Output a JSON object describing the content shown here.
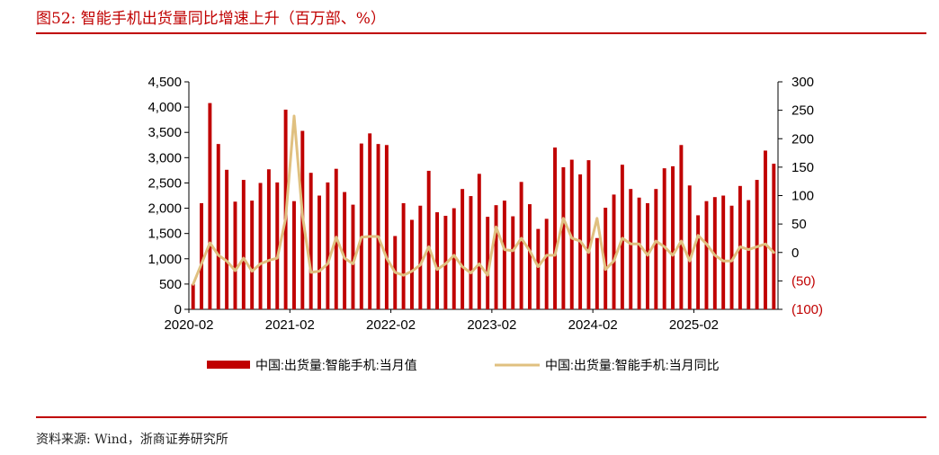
{
  "header": {
    "title": "图52:   智能手机出货量同比增速上升（百万部、%）"
  },
  "footer": {
    "source": "资料来源:  Wind，浙商证券研究所"
  },
  "colors": {
    "accent": "#c00000",
    "bar": "#c00000",
    "line": "#e0c080",
    "neg_tick": "#c00000"
  },
  "chart_data": {
    "type": "bar",
    "x_tick_labels": [
      "2020-02",
      "2021-02",
      "2022-02",
      "2023-02",
      "2024-02",
      "2025-02"
    ],
    "y_left": {
      "ticks": [
        "0",
        "500",
        "1,000",
        "1,500",
        "2,000",
        "2,500",
        "3,000",
        "3,500",
        "4,000",
        "4,500"
      ],
      "ylim": [
        0,
        4500
      ]
    },
    "y_right": {
      "ticks": [
        "(100)",
        "(50)",
        "0",
        "50",
        "100",
        "150",
        "200",
        "250",
        "300"
      ],
      "ylim": [
        -100,
        300
      ]
    },
    "legend": {
      "position": "bottom"
    },
    "series": [
      {
        "name": "中国:出货量:智能手机:当月值",
        "type": "bar",
        "axis": "left",
        "values": [
          500,
          2100,
          4080,
          3270,
          2760,
          2130,
          2560,
          2150,
          2500,
          2770,
          2510,
          3950,
          2140,
          3530,
          2700,
          2250,
          2510,
          2780,
          2320,
          2070,
          3280,
          3480,
          3270,
          3250,
          1450,
          2100,
          1770,
          2050,
          2740,
          1920,
          1850,
          2000,
          2380,
          2240,
          2680,
          1830,
          2060,
          2150,
          1840,
          2520,
          2080,
          1590,
          1790,
          3200,
          2810,
          2960,
          2670,
          2950,
          1410,
          2010,
          2270,
          2860,
          2380,
          2210,
          2100,
          2380,
          2790,
          2830,
          3250,
          2450,
          1860,
          2140,
          2220,
          2250,
          2050,
          2440,
          2160,
          2560,
          3140,
          2880
        ]
      },
      {
        "name": "中国:出货量:智能手机:当月同比",
        "type": "line",
        "axis": "right",
        "values": [
          -56,
          -20,
          17,
          -5,
          -15,
          -32,
          -10,
          -33,
          -20,
          -14,
          -10,
          60,
          240,
          65,
          -35,
          -33,
          -20,
          27,
          -10,
          -20,
          27,
          28,
          28,
          -10,
          -35,
          -40,
          -33,
          -22,
          10,
          -30,
          -20,
          -5,
          -25,
          -36,
          -20,
          -40,
          45,
          5,
          3,
          25,
          3,
          -25,
          -5,
          -5,
          60,
          25,
          20,
          0,
          60,
          -30,
          -15,
          25,
          15,
          15,
          -5,
          20,
          10,
          -5,
          20,
          -15,
          30,
          15,
          -5,
          -15,
          -15,
          10,
          5,
          10,
          15,
          0
        ]
      }
    ]
  }
}
